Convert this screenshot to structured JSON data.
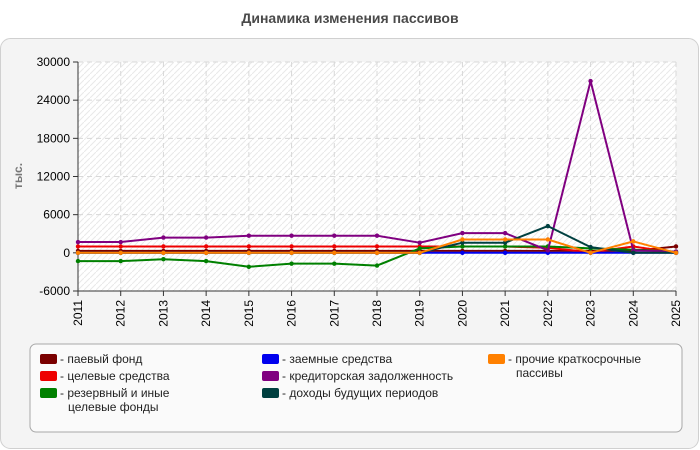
{
  "title": "Динамика изменения пассивов",
  "chart_data": {
    "type": "line",
    "ylabel": "тыс.",
    "xlabel": "",
    "ylim": [
      -6000,
      30000
    ],
    "yticks": [
      -6000,
      0,
      6000,
      12000,
      18000,
      24000,
      30000
    ],
    "yticklabels": [
      "-6000",
      "0",
      "6000",
      "12000",
      "18000",
      "24000",
      "30000"
    ],
    "x": [
      "2011",
      "2012",
      "2013",
      "2014",
      "2015",
      "2016",
      "2017",
      "2018",
      "2019",
      "2020",
      "2021",
      "2022",
      "2023",
      "2024",
      "2025"
    ],
    "grid": true,
    "legend_position": "bottom",
    "series": [
      {
        "name": "паевый фонд",
        "color": "#7a0000",
        "values": [
          300,
          300,
          300,
          300,
          300,
          300,
          300,
          300,
          300,
          300,
          300,
          300,
          300,
          300,
          1000
        ]
      },
      {
        "name": "целевые средства",
        "color": "#ee0000",
        "values": [
          1000,
          1000,
          1000,
          1000,
          1000,
          1000,
          1000,
          1000,
          1000,
          1000,
          1000,
          800,
          100,
          1000,
          0
        ]
      },
      {
        "name": "резервный и иные целевые фонды",
        "color": "#008000",
        "values": [
          -1300,
          -1300,
          -1000,
          -1300,
          -2200,
          -1700,
          -1700,
          -2000,
          700,
          1000,
          1000,
          1000,
          700,
          500,
          200
        ]
      },
      {
        "name": "заемные средства",
        "color": "#0000ee",
        "values": [
          0,
          0,
          0,
          0,
          0,
          0,
          0,
          0,
          0,
          0,
          0,
          0,
          0,
          0,
          0
        ]
      },
      {
        "name": "кредиторская задолженность",
        "color": "#800080",
        "values": [
          1700,
          1700,
          2400,
          2400,
          2700,
          2700,
          2700,
          2700,
          1600,
          3100,
          3100,
          400,
          27000,
          400,
          200
        ]
      },
      {
        "name": "доходы будущих периодов",
        "color": "#004040",
        "values": [
          0,
          0,
          0,
          0,
          0,
          0,
          0,
          0,
          0,
          1600,
          1600,
          4200,
          900,
          0,
          0
        ]
      },
      {
        "name": "прочие краткосрочные пассивы",
        "color": "#ff8000",
        "values": [
          0,
          0,
          0,
          0,
          0,
          0,
          0,
          0,
          0,
          2100,
          2100,
          2100,
          0,
          1800,
          0
        ]
      }
    ]
  }
}
